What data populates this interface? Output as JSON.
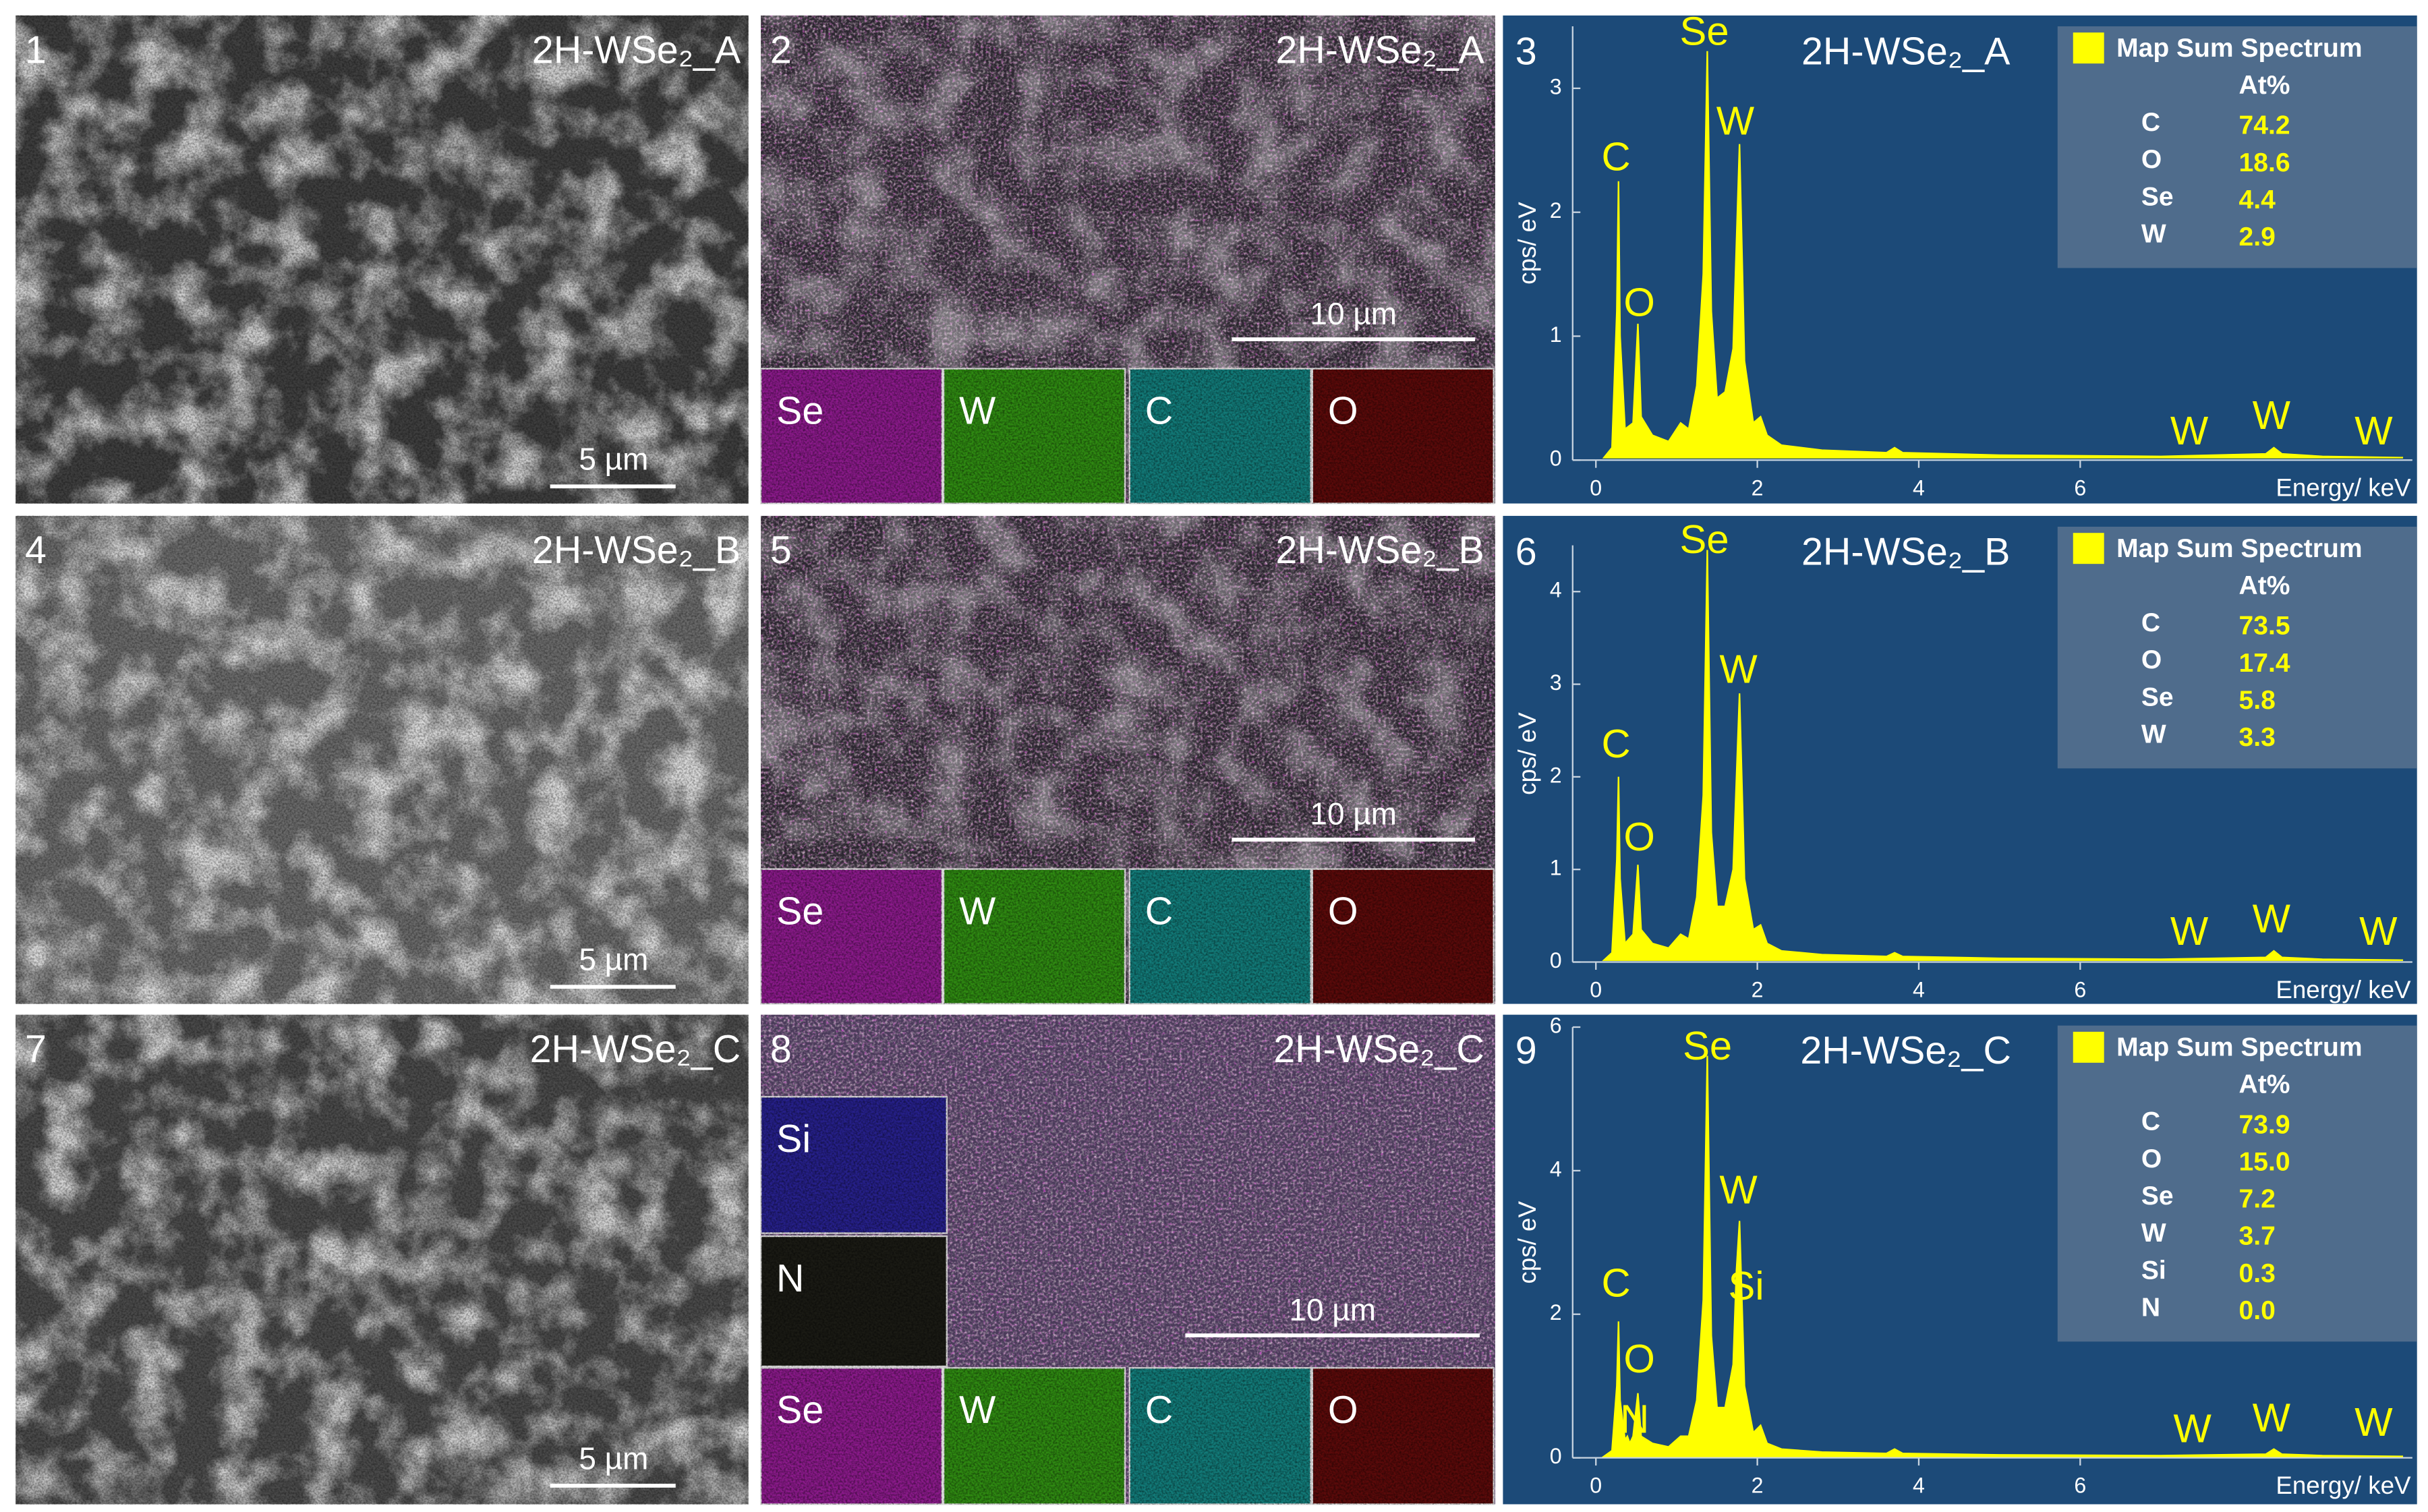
{
  "sem_images": [
    {
      "number": "1",
      "title": "2H-WSe₂_A",
      "scale_bar": "5 µm"
    },
    {
      "number": "4",
      "title": "2H-WSe₂_B",
      "scale_bar": "5 µm"
    },
    {
      "number": "7",
      "title": "2H-WSe₂_C",
      "scale_bar": "5 µm"
    }
  ],
  "eds_maps": [
    {
      "number": "2",
      "title": "2H-WSe₂_A",
      "scale_bar": "10 µm",
      "tiles": [
        "Se",
        "W",
        "C",
        "O"
      ]
    },
    {
      "number": "5",
      "title": "2H-WSe₂_B",
      "scale_bar": "10 µm",
      "tiles": [
        "Se",
        "W",
        "C",
        "O"
      ]
    },
    {
      "number": "8",
      "title": "2H-WSe₂_C",
      "scale_bar": "10 µm",
      "tiles": [
        "Se",
        "W",
        "C",
        "O",
        "Si",
        "N"
      ]
    }
  ],
  "chart_data": [
    {
      "type": "area",
      "panel_number": "3",
      "title": "2H-WSe₂_A",
      "xlabel": "Energy/ keV",
      "ylabel": "cps/ eV",
      "x": [
        0.1,
        0.2,
        0.26,
        0.28,
        0.3,
        0.36,
        0.46,
        0.52,
        0.56,
        0.7,
        0.9,
        1.05,
        1.15,
        1.25,
        1.33,
        1.38,
        1.43,
        1.5,
        1.6,
        1.7,
        1.78,
        1.84,
        1.95,
        2.04,
        2.12,
        2.3,
        2.8,
        3.6,
        3.7,
        3.8,
        5,
        7,
        8.3,
        8.4,
        8.5,
        9,
        10
      ],
      "series": [
        {
          "name": "Map Sum Spectrum",
          "color": "#ffff00",
          "values": [
            0.02,
            0.1,
            1.2,
            2.25,
            1.0,
            0.25,
            0.3,
            1.1,
            0.35,
            0.2,
            0.15,
            0.3,
            0.25,
            0.6,
            1.5,
            3.3,
            1.2,
            0.5,
            0.55,
            0.9,
            2.55,
            0.8,
            0.3,
            0.35,
            0.2,
            0.12,
            0.08,
            0.06,
            0.1,
            0.06,
            0.04,
            0.03,
            0.05,
            0.1,
            0.05,
            0.03,
            0.02
          ]
        }
      ],
      "xlim": [
        0,
        10
      ],
      "xticks": [
        0,
        2,
        4,
        6
      ],
      "ylim": [
        0,
        3.5
      ],
      "yticks": [
        0,
        1,
        2,
        3
      ],
      "peak_labels": [
        "C",
        "O",
        "Se",
        "W",
        "W",
        "W",
        "W"
      ],
      "composition": {
        "header": "At%",
        "rows": [
          [
            "C",
            "74.2"
          ],
          [
            "O",
            "18.6"
          ],
          [
            "Se",
            "4.4"
          ],
          [
            "W",
            "2.9"
          ]
        ]
      }
    },
    {
      "type": "area",
      "panel_number": "6",
      "title": "2H-WSe₂_B",
      "xlabel": "Energy/ keV",
      "ylabel": "cps/ eV",
      "x": [
        0.1,
        0.2,
        0.26,
        0.28,
        0.3,
        0.36,
        0.46,
        0.52,
        0.56,
        0.7,
        0.9,
        1.05,
        1.15,
        1.25,
        1.33,
        1.38,
        1.43,
        1.5,
        1.6,
        1.7,
        1.78,
        1.84,
        1.95,
        2.04,
        2.12,
        2.3,
        2.8,
        3.6,
        3.7,
        3.8,
        5,
        7,
        8.3,
        8.4,
        8.5,
        9,
        10
      ],
      "series": [
        {
          "name": "Map Sum Spectrum",
          "color": "#ffff00",
          "values": [
            0.02,
            0.1,
            1.1,
            2.0,
            0.9,
            0.2,
            0.3,
            1.05,
            0.35,
            0.2,
            0.15,
            0.3,
            0.25,
            0.7,
            1.8,
            4.45,
            1.4,
            0.6,
            0.6,
            1.0,
            2.9,
            0.9,
            0.35,
            0.4,
            0.2,
            0.12,
            0.08,
            0.06,
            0.1,
            0.06,
            0.04,
            0.03,
            0.05,
            0.12,
            0.05,
            0.03,
            0.02
          ]
        }
      ],
      "xlim": [
        0,
        10
      ],
      "xticks": [
        0,
        2,
        4,
        6
      ],
      "ylim": [
        0,
        4.5
      ],
      "yticks": [
        0,
        1,
        2,
        3,
        4
      ],
      "peak_labels": [
        "C",
        "O",
        "Se",
        "W",
        "W",
        "W",
        "W"
      ],
      "composition": {
        "header": "At%",
        "rows": [
          [
            "C",
            "73.5"
          ],
          [
            "O",
            "17.4"
          ],
          [
            "Se",
            "5.8"
          ],
          [
            "W",
            "3.3"
          ]
        ]
      }
    },
    {
      "type": "area",
      "panel_number": "9",
      "title": "2H-WSe₂_C",
      "xlabel": "Energy/ keV",
      "ylabel": "cps/ eV",
      "x": [
        0.1,
        0.2,
        0.26,
        0.28,
        0.3,
        0.36,
        0.39,
        0.42,
        0.46,
        0.52,
        0.56,
        0.7,
        0.9,
        1.05,
        1.15,
        1.25,
        1.33,
        1.38,
        1.43,
        1.5,
        1.6,
        1.7,
        1.74,
        1.78,
        1.84,
        1.95,
        2.04,
        2.12,
        2.3,
        2.8,
        3.6,
        3.7,
        3.8,
        5,
        7,
        8.3,
        8.4,
        8.5,
        9,
        10
      ],
      "series": [
        {
          "name": "Map Sum Spectrum",
          "color": "#ffff00",
          "values": [
            0.02,
            0.1,
            1.0,
            1.9,
            0.8,
            0.25,
            0.3,
            0.2,
            0.3,
            0.9,
            0.3,
            0.2,
            0.15,
            0.3,
            0.3,
            0.8,
            2.2,
            5.6,
            1.7,
            0.7,
            0.7,
            1.3,
            2.6,
            3.3,
            1.0,
            0.35,
            0.45,
            0.2,
            0.12,
            0.08,
            0.06,
            0.12,
            0.06,
            0.04,
            0.03,
            0.05,
            0.12,
            0.05,
            0.03,
            0.02
          ]
        }
      ],
      "xlim": [
        0,
        10
      ],
      "xticks": [
        0,
        2,
        4,
        6
      ],
      "ylim": [
        0,
        6
      ],
      "yticks": [
        0,
        2,
        4,
        6
      ],
      "peak_labels": [
        "C",
        "O",
        "N",
        "Se",
        "W",
        "Si",
        "W",
        "W",
        "W"
      ],
      "composition": {
        "header": "At%",
        "rows": [
          [
            "C",
            "73.9"
          ],
          [
            "O",
            "15.0"
          ],
          [
            "Se",
            "7.2"
          ],
          [
            "W",
            "3.7"
          ],
          [
            "Si",
            "0.3"
          ],
          [
            "N",
            "0.0"
          ]
        ]
      }
    }
  ]
}
